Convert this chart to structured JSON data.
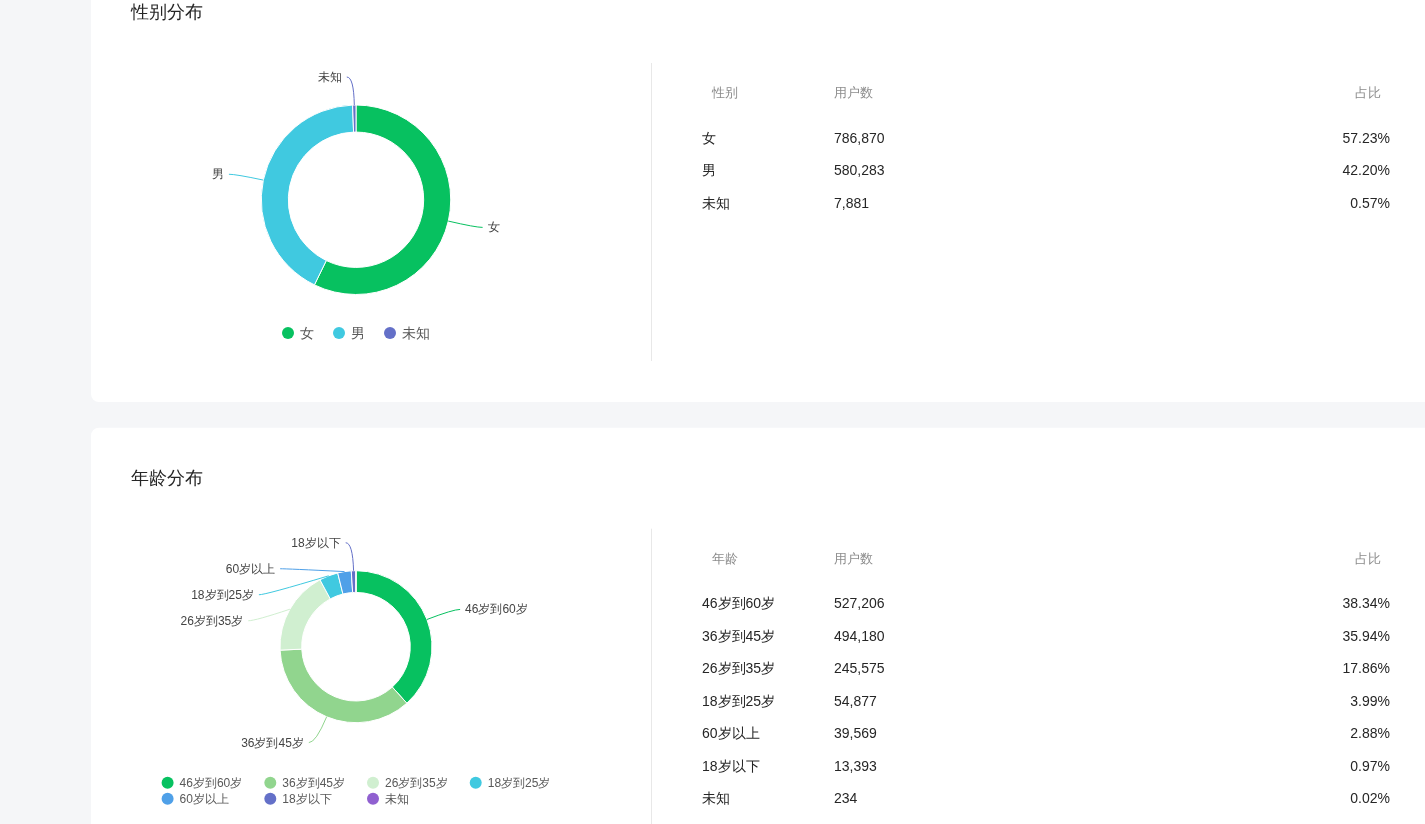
{
  "chart_data": [
    {
      "type": "donut",
      "title": "性别分布",
      "categories": [
        "女",
        "男",
        "未知"
      ],
      "values": [
        57.23,
        42.2,
        0.57
      ],
      "colors": [
        "#07c160",
        "#40c9e0",
        "#6470c8"
      ],
      "legend": "bottom"
    },
    {
      "type": "other",
      "annotations": [
        "性别",
        "用户数",
        "占比",
        "女",
        "786,870",
        "57.23%",
        "男",
        "580,283",
        "42.20%",
        "未知",
        "7,881",
        "0.57%"
      ]
    },
    {
      "type": "donut",
      "title": "年龄分布",
      "categories": [
        "46岁到60岁",
        "36岁到45岁",
        "26岁到35岁",
        "18岁到25岁",
        "60岁以上",
        "18岁以下",
        "未知"
      ],
      "values": [
        38.34,
        35.94,
        17.86,
        3.99,
        2.88,
        0.97,
        0.02
      ],
      "colors": [
        "#07c160",
        "#91d58e",
        "#d0efd0",
        "#40c9e0",
        "#4fa0e8",
        "#6470c8",
        "#9060d0"
      ],
      "legend": "bottom"
    },
    {
      "type": "other",
      "annotations": [
        "年龄",
        "用户数",
        "占比",
        "46岁到60岁",
        "527,206",
        "38.34%",
        "36岁到45岁",
        "494,180",
        "35.94%",
        "26岁到35岁",
        "245,575",
        "17.86%",
        "18岁到25岁",
        "54,877",
        "3.99%",
        "60岁以上",
        "39,569",
        "2.88%",
        "18岁以下",
        "13,393",
        "0.97%",
        "未知",
        "234",
        "0.02%"
      ]
    }
  ]
}
